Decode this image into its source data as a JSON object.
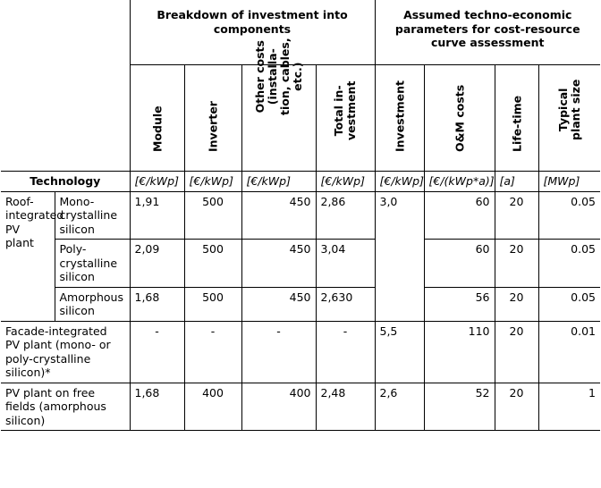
{
  "headers": {
    "group1": "Breakdown of investment into components",
    "group2": "Assumed techno-economic parameters for cost-resource curve assessment",
    "module": "Module",
    "inverter": "Inverter",
    "other_costs": [
      "Other costs",
      "(installa-",
      "tion, cables,",
      "etc.)"
    ],
    "total_investment": [
      "Total in-",
      "vestment"
    ],
    "investment": "Investment",
    "om_costs": "O&M costs",
    "lifetime": "Life-time",
    "plant_size": [
      "Typical",
      "plant size"
    ],
    "technology": "Technology"
  },
  "units": {
    "module": "[€/kWp]",
    "inverter": "[€/kWp]",
    "other_costs": "[€/kWp]",
    "total_investment": "[€/kWp]",
    "investment": "[€/kWp]",
    "om_costs": "[€/(kWp*a)]",
    "lifetime": "[a]",
    "plant_size": "[MWp]"
  },
  "rows": [
    {
      "group": "Roof-integrated PV plant",
      "sub": "Mono-crystalline silicon",
      "module": "1,91",
      "inverter": "500",
      "other": "450",
      "total": "2,86",
      "investment": "3,0",
      "om": "60",
      "life": "20",
      "size": "0.05"
    },
    {
      "group": "",
      "sub": "Poly-crystalline silicon",
      "module": "2,09",
      "inverter": "500",
      "other": "450",
      "total": "3,04",
      "investment": "",
      "om": "60",
      "life": "20",
      "size": "0.05"
    },
    {
      "group": "",
      "sub": "Amorphous silicon",
      "module": "1,68",
      "inverter": "500",
      "other": "450",
      "total": "2,630",
      "investment": "",
      "om": "56",
      "life": "20",
      "size": "0.05"
    },
    {
      "group": "Facade-integrated PV plant (mono- or poly-crystalline silicon)*",
      "sub": "",
      "module": "-",
      "inverter": "-",
      "other": "-",
      "total": "-",
      "investment": "5,5",
      "om": "110",
      "life": "20",
      "size": "0.01"
    },
    {
      "group": "PV plant on free fields (amorphous silicon)",
      "sub": "",
      "module": "1,68",
      "inverter": "400",
      "other": "400",
      "total": "2,48",
      "investment": "2,6",
      "om": "52",
      "life": "20",
      "size": "1"
    }
  ]
}
